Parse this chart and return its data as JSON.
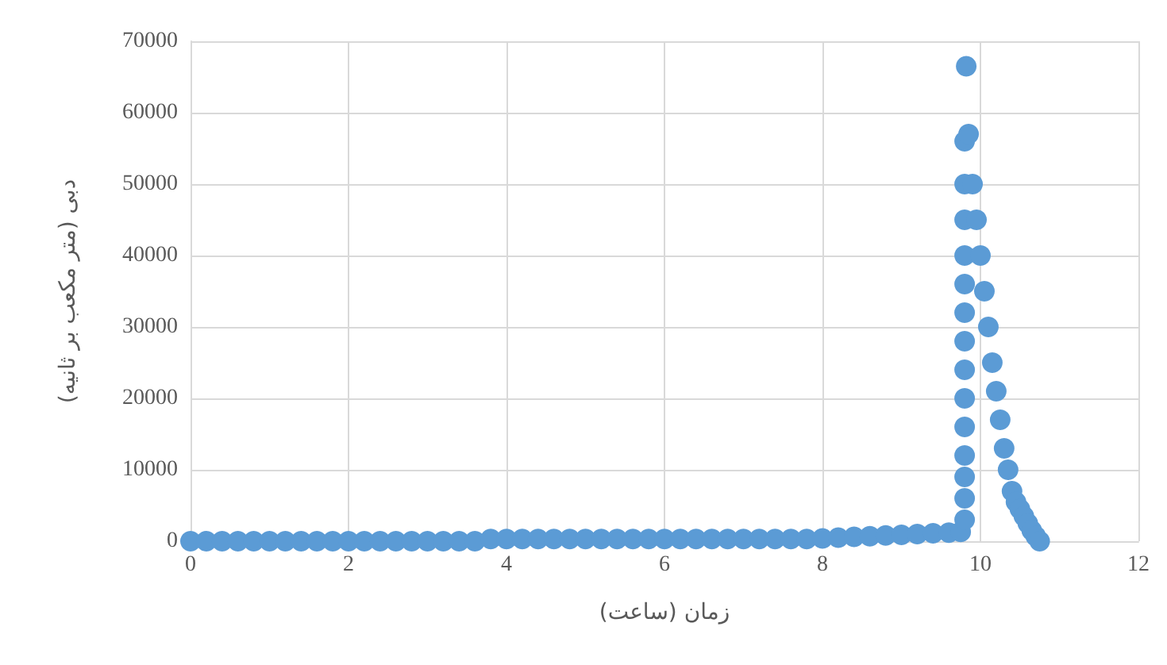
{
  "chart_data": {
    "type": "scatter",
    "xlabel": "زمان (ساعت)",
    "ylabel": "دبی (متر مکعب بر ثانیه)",
    "xlim": [
      0,
      12
    ],
    "xticks": [
      0,
      2,
      4,
      6,
      8,
      10,
      12
    ],
    "ylim": [
      0,
      70000
    ],
    "yticks": [
      0,
      10000,
      20000,
      30000,
      40000,
      50000,
      60000,
      70000
    ],
    "grid": true,
    "marker": "circle",
    "series": [
      {
        "color": "#5b9bd5",
        "x": [
          0,
          0.2,
          0.4,
          0.6,
          0.8,
          1,
          1.2,
          1.4,
          1.6,
          1.8,
          2,
          2.2,
          2.4,
          2.6,
          2.8,
          3,
          3.2,
          3.4,
          3.6,
          3.8,
          4,
          4.2,
          4.4,
          4.6,
          4.8,
          5,
          5.2,
          5.4,
          5.6,
          5.8,
          6,
          6.2,
          6.4,
          6.6,
          6.8,
          7,
          7.2,
          7.4,
          7.6,
          7.8,
          8,
          8.2,
          8.4,
          8.6,
          8.8,
          9,
          9.2,
          9.4,
          9.6,
          9.75,
          9.8,
          9.8,
          9.8,
          9.8,
          9.8,
          9.8,
          9.8,
          9.8,
          9.8,
          9.8,
          9.8,
          9.8,
          9.8,
          9.8,
          9.82,
          9.85,
          9.9,
          9.95,
          10,
          10.05,
          10.1,
          10.15,
          10.2,
          10.25,
          10.3,
          10.35,
          10.4,
          10.45,
          10.5,
          10.55,
          10.6,
          10.65,
          10.7,
          10.75
        ],
        "values": [
          0,
          0,
          0,
          0,
          0,
          0,
          0,
          0,
          0,
          0,
          0,
          0,
          0,
          0,
          0,
          0,
          0,
          0,
          0,
          300,
          300,
          300,
          300,
          300,
          300,
          300,
          300,
          300,
          300,
          300,
          300,
          300,
          300,
          300,
          300,
          300,
          300,
          300,
          300,
          300,
          400,
          500,
          600,
          700,
          800,
          900,
          1000,
          1100,
          1200,
          1300,
          3000,
          6000,
          9000,
          12000,
          16000,
          20000,
          24000,
          28000,
          32000,
          36000,
          40000,
          45000,
          50000,
          56000,
          66500,
          57000,
          50000,
          45000,
          40000,
          35000,
          30000,
          25000,
          21000,
          17000,
          13000,
          10000,
          7000,
          5500,
          4500,
          3500,
          2500,
          1500,
          700,
          0
        ]
      }
    ]
  }
}
